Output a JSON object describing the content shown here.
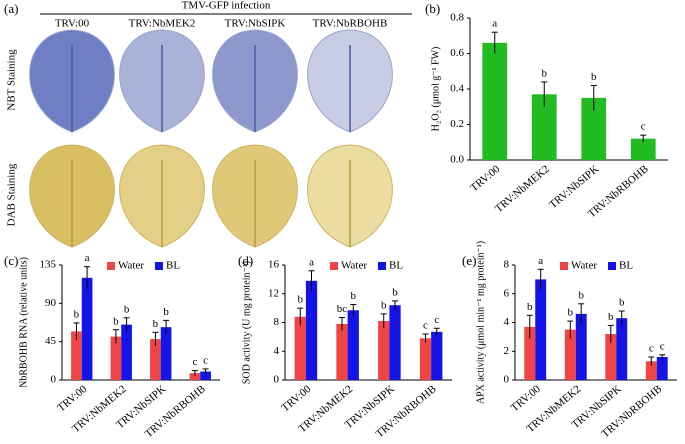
{
  "panel_a": {
    "label": "(a)",
    "header": "TMV-GFP infection",
    "columns": [
      "TRV:00",
      "TRV:NbMEK2",
      "TRV:NbSIPK",
      "TRV:NbRBOHB"
    ],
    "rows": [
      "NBT Staining",
      "DAB Staining"
    ]
  },
  "chart_data": [
    {
      "type": "bar",
      "panel_label": "(b)",
      "y_label": "H₂O₂ (μmol g⁻¹ FW)",
      "categories": [
        "TRV:00",
        "TRV:NbMEK2",
        "TRV:NbSIPK",
        "TRV:NbRBOHB"
      ],
      "values": [
        0.66,
        0.37,
        0.35,
        0.12
      ],
      "errors": [
        0.06,
        0.07,
        0.07,
        0.02
      ],
      "annotations": [
        "a",
        "b",
        "b",
        "c"
      ],
      "color": "#22bb22",
      "ylim": [
        0,
        0.8
      ],
      "yticks": [
        {
          "value": 0,
          "label": "0.0"
        },
        0.2,
        0.4,
        0.6,
        0.8
      ]
    },
    {
      "type": "bar",
      "panel_label": "(c)",
      "y_label": "NbRBOHB RNA (relative units)",
      "categories": [
        "TRV:00",
        "TRV:NbMEK2",
        "TRV:NbSIPK",
        "TRV:NbRBOHB"
      ],
      "series": [
        {
          "name": "Water",
          "color": "#f04545",
          "values": [
            57,
            51,
            48,
            8
          ],
          "errors": [
            10,
            8,
            8,
            3
          ],
          "annotations": [
            "b",
            "b",
            "b",
            "c"
          ]
        },
        {
          "name": "BL",
          "color": "#1414e6",
          "values": [
            120,
            65,
            62,
            10
          ],
          "errors": [
            13,
            8,
            8,
            3
          ],
          "annotations": [
            "a",
            "b",
            "b",
            "c"
          ]
        }
      ],
      "ylim": [
        0,
        135
      ],
      "yticks": [
        0,
        45,
        90,
        135
      ]
    },
    {
      "type": "bar",
      "panel_label": "(d)",
      "y_label": "SOD activity (U mg protein⁻¹)",
      "categories": [
        "TRV:00",
        "TRV:NbMEK2",
        "TRV:NbSIPK",
        "TRV:NbRBOHB"
      ],
      "series": [
        {
          "name": "Water",
          "color": "#f04545",
          "values": [
            8.8,
            7.8,
            8.2,
            5.8
          ],
          "errors": [
            1.2,
            0.9,
            1.0,
            0.6
          ],
          "annotations": [
            "b",
            "bc",
            "b",
            "c"
          ]
        },
        {
          "name": "BL",
          "color": "#1414e6",
          "values": [
            13.8,
            9.7,
            10.4,
            6.7
          ],
          "errors": [
            1.4,
            0.8,
            0.6,
            0.5
          ],
          "annotations": [
            "a",
            "b",
            "b",
            "c"
          ]
        }
      ],
      "ylim": [
        0,
        16
      ],
      "yticks": [
        0,
        4,
        8,
        12,
        16
      ]
    },
    {
      "type": "bar",
      "panel_label": "(e)",
      "y_label": "APX activity (μmol min⁻¹ mg protein⁻¹)",
      "categories": [
        "TRV:00",
        "TRV:NbMEK2",
        "TRV:NbSIPK",
        "TRV:NbRBOHB"
      ],
      "series": [
        {
          "name": "Water",
          "color": "#f04545",
          "values": [
            3.7,
            3.5,
            3.2,
            1.3
          ],
          "errors": [
            0.8,
            0.6,
            0.6,
            0.3
          ],
          "annotations": [
            "b",
            "b",
            "b",
            "c"
          ]
        },
        {
          "name": "BL",
          "color": "#1414e6",
          "values": [
            7.0,
            4.6,
            4.3,
            1.6
          ],
          "errors": [
            0.7,
            0.7,
            0.5,
            0.15
          ],
          "annotations": [
            "a",
            "b",
            "b",
            "c"
          ]
        }
      ],
      "ylim": [
        0,
        8
      ],
      "yticks": [
        0,
        2,
        4,
        6,
        8
      ]
    }
  ]
}
